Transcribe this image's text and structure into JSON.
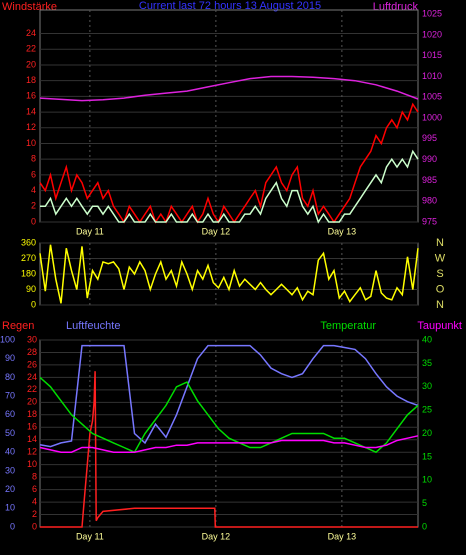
{
  "chart_data": [
    {
      "type": "line",
      "title": "Current last 72 hours 13 August 2015",
      "ylabel": "Windstärke",
      "y2label": "Luftdruck",
      "x": [
        0,
        1,
        2,
        3,
        4,
        5,
        6,
        7,
        8,
        9,
        10,
        11,
        12,
        13,
        14,
        15,
        16,
        17,
        18,
        19,
        20,
        21,
        22,
        23,
        24,
        25,
        26,
        27,
        28,
        29,
        30,
        31,
        32,
        33,
        34,
        35,
        36,
        37,
        38,
        39,
        40,
        41,
        42,
        43,
        44,
        45,
        46,
        47,
        48,
        49,
        50,
        51,
        52,
        53,
        54,
        55,
        56,
        57,
        58,
        59,
        60,
        61,
        62,
        63,
        64,
        65,
        66,
        67,
        68,
        69,
        70,
        71,
        72
      ],
      "xlim": [
        0,
        72
      ],
      "xticks": [
        {
          "value": 9.5,
          "label": "Day 11"
        },
        {
          "value": 33.5,
          "label": "Day 12"
        },
        {
          "value": 57.5,
          "label": "Day 13"
        }
      ],
      "ylim": [
        0,
        27
      ],
      "yticks": [
        0,
        2,
        4,
        6,
        8,
        10,
        12,
        14,
        16,
        18,
        20,
        22,
        24
      ],
      "y2lim": [
        975,
        1026
      ],
      "y2ticks": [
        975,
        980,
        985,
        990,
        995,
        1000,
        1005,
        1010,
        1015,
        1020,
        1025
      ],
      "grid": true,
      "series": [
        {
          "color": "#ff0000",
          "values": [
            5,
            4,
            6,
            3,
            5,
            7,
            4,
            6,
            5,
            3,
            4,
            5,
            3,
            4,
            2,
            1,
            0,
            2,
            1,
            0,
            1,
            2,
            0,
            1,
            0,
            2,
            1,
            0,
            1,
            2,
            0,
            1,
            3,
            1,
            0,
            2,
            1,
            0,
            1,
            2,
            3,
            4,
            2,
            5,
            6,
            7,
            5,
            4,
            6,
            7,
            3,
            2,
            4,
            1,
            2,
            1,
            0,
            1,
            2,
            3,
            5,
            7,
            8,
            9,
            11,
            10,
            12,
            13,
            12,
            14,
            13,
            15,
            14
          ]
        },
        {
          "color": "#ccffcc",
          "values": [
            2,
            2,
            3,
            1,
            2,
            3,
            2,
            3,
            2,
            1,
            2,
            2,
            1,
            2,
            1,
            0,
            0,
            1,
            0,
            0,
            0,
            1,
            0,
            0,
            0,
            1,
            0,
            0,
            0,
            1,
            0,
            0,
            1,
            0,
            0,
            1,
            0,
            0,
            0,
            1,
            1,
            2,
            1,
            3,
            4,
            5,
            3,
            2,
            4,
            4,
            2,
            1,
            2,
            0,
            1,
            0,
            0,
            0,
            1,
            1,
            2,
            3,
            4,
            5,
            6,
            5,
            7,
            8,
            7,
            8,
            7,
            9,
            8
          ]
        },
        {
          "color": "#dd22dd",
          "axis": "y2",
          "x": [
            0,
            4,
            8,
            12,
            16,
            20,
            24,
            28,
            32,
            36,
            40,
            44,
            48,
            52,
            56,
            60,
            64,
            68,
            72
          ],
          "values": [
            1004.8,
            1004.5,
            1004.2,
            1004.4,
            1004.8,
            1005.5,
            1006,
            1006.5,
            1007.5,
            1008.5,
            1009.5,
            1010,
            1010,
            1009.8,
            1009.5,
            1009,
            1008,
            1006.5,
            1004.6
          ]
        }
      ]
    },
    {
      "type": "line",
      "x": [
        0,
        1,
        2,
        3,
        4,
        5,
        6,
        7,
        8,
        9,
        10,
        11,
        12,
        13,
        14,
        15,
        16,
        17,
        18,
        19,
        20,
        21,
        22,
        23,
        24,
        25,
        26,
        27,
        28,
        29,
        30,
        31,
        32,
        33,
        34,
        35,
        36,
        37,
        38,
        39,
        40,
        41,
        42,
        43,
        44,
        45,
        46,
        47,
        48,
        49,
        50,
        51,
        52,
        53,
        54,
        55,
        56,
        57,
        58,
        59,
        60,
        61,
        62,
        63,
        64,
        65,
        66,
        67,
        68,
        69,
        70,
        71,
        72
      ],
      "xlim": [
        0,
        72
      ],
      "xticks": [
        {
          "value": 9.5,
          "label": ""
        },
        {
          "value": 33.5,
          "label": ""
        },
        {
          "value": 57.5,
          "label": ""
        }
      ],
      "ylim": [
        0,
        360
      ],
      "yticks": [
        0,
        90,
        180,
        270,
        360
      ],
      "y2lim": [
        0,
        360
      ],
      "y2ticks": [
        {
          "value": 360,
          "label": "N"
        },
        {
          "value": 270,
          "label": "W"
        },
        {
          "value": 180,
          "label": "S"
        },
        {
          "value": 90,
          "label": "O"
        },
        {
          "value": 0,
          "label": "N"
        }
      ],
      "grid": true,
      "series": [
        {
          "color": "#ffff00",
          "values": [
            300,
            80,
            350,
            150,
            10,
            330,
            200,
            90,
            340,
            40,
            200,
            150,
            250,
            240,
            250,
            210,
            90,
            220,
            180,
            250,
            200,
            90,
            180,
            250,
            150,
            200,
            110,
            250,
            180,
            90,
            200,
            150,
            230,
            130,
            100,
            160,
            90,
            200,
            110,
            150,
            120,
            90,
            130,
            90,
            60,
            90,
            120,
            90,
            60,
            100,
            30,
            80,
            60,
            260,
            300,
            150,
            200,
            40,
            80,
            20,
            60,
            100,
            30,
            50,
            200,
            70,
            40,
            30,
            100,
            60,
            280,
            90,
            330
          ]
        }
      ]
    },
    {
      "type": "line",
      "x": [
        0,
        2,
        4,
        6,
        8,
        10,
        12,
        14,
        16,
        18,
        20,
        22,
        24,
        26,
        28,
        30,
        32,
        34,
        36,
        38,
        40,
        42,
        44,
        46,
        48,
        50,
        52,
        54,
        56,
        58,
        60,
        62,
        64,
        66,
        68,
        70,
        72
      ],
      "xlim": [
        0,
        72
      ],
      "xticks": [
        {
          "value": 9.5,
          "label": "Day 11"
        },
        {
          "value": 33.5,
          "label": "Day 12"
        },
        {
          "value": 57.5,
          "label": "Day 13"
        }
      ],
      "ylim": [
        0,
        30
      ],
      "yticks": [
        0,
        2,
        4,
        6,
        8,
        10,
        12,
        14,
        16,
        18,
        20,
        22,
        24,
        26,
        28,
        30
      ],
      "y3lim": [
        0,
        100
      ],
      "y3ticks": [
        0,
        10,
        20,
        30,
        40,
        50,
        60,
        70,
        80,
        90,
        100
      ],
      "y2lim": [
        0,
        40
      ],
      "y2ticks": [
        0,
        5,
        10,
        15,
        20,
        25,
        30,
        35,
        40
      ],
      "grid": true,
      "series": [
        {
          "name": "Regen",
          "color": "#ff2020",
          "x": [
            0,
            8,
            8.5,
            9,
            9.5,
            10,
            10.3,
            10.5,
            10.7,
            11,
            12,
            18,
            33.3,
            33.4,
            72
          ],
          "values": [
            0,
            0,
            5,
            10,
            15,
            17,
            20,
            25,
            1,
            1.5,
            2.5,
            3,
            3,
            0,
            0
          ]
        },
        {
          "name": "Luftfeuchte",
          "color": "#7777ff",
          "axis": "y3",
          "values": [
            44,
            43,
            45,
            46,
            97,
            97,
            97,
            97,
            97,
            50,
            45,
            55,
            48,
            60,
            75,
            90,
            97,
            97,
            97,
            97,
            97,
            92,
            85,
            82,
            80,
            82,
            90,
            97,
            97,
            96,
            95,
            90,
            82,
            75,
            70,
            67,
            65
          ]
        },
        {
          "name": "Temperatur",
          "color": "#00dd00",
          "axis": "y2",
          "values": [
            32,
            30,
            27,
            24,
            22,
            20,
            19,
            18,
            17,
            16,
            20,
            23,
            26,
            30,
            31,
            27,
            24,
            21,
            19,
            18,
            17,
            17,
            18,
            19,
            20,
            20,
            20,
            20,
            19,
            19,
            18,
            17,
            16,
            18,
            21,
            24,
            26
          ]
        },
        {
          "name": "Taupunkt",
          "color": "#ff00ff",
          "axis": "y2",
          "values": [
            17,
            16.5,
            16,
            16,
            17,
            17,
            16.5,
            16,
            16,
            16,
            16.5,
            17,
            17,
            17.5,
            17.5,
            18,
            18,
            18,
            18,
            18,
            18,
            18,
            18,
            18.5,
            18.5,
            18.5,
            18.5,
            18.5,
            18,
            18,
            17.5,
            17,
            17,
            17.5,
            18.5,
            19,
            19.5
          ]
        }
      ]
    }
  ]
}
